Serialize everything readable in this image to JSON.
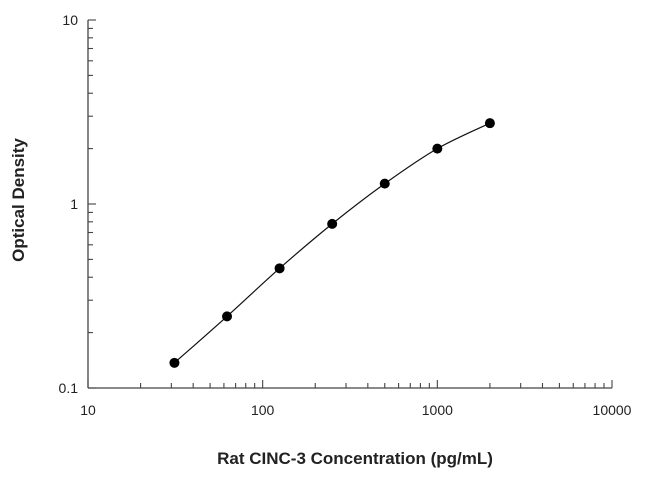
{
  "chart_data": {
    "type": "scatter",
    "xlabel": "Rat CINC-3 Concentration (pg/mL)",
    "ylabel": "Optical Density",
    "x_scale": "log",
    "y_scale": "log",
    "xlim": [
      10,
      10000
    ],
    "ylim": [
      0.1,
      10
    ],
    "x_ticks": [
      "10",
      "100",
      "1000",
      "10000"
    ],
    "y_ticks": [
      "0.1",
      "1",
      "10"
    ],
    "grid": false,
    "fit_line": true,
    "colors": {
      "points": "#000000",
      "line": "#111111",
      "axes": "#444444"
    },
    "series": [
      {
        "x": [
          31.25,
          62.5,
          125,
          250,
          500,
          1000,
          2000
        ],
        "y": [
          0.137,
          0.245,
          0.447,
          0.78,
          1.29,
          2.0,
          2.75
        ]
      }
    ]
  }
}
